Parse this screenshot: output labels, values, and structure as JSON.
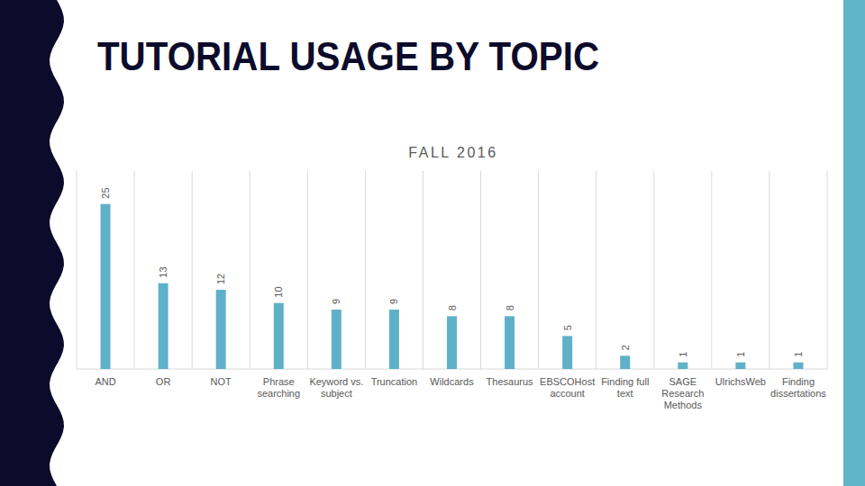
{
  "slide": {
    "title": "TUTORIAL USAGE BY TOPIC"
  },
  "chart_data": {
    "type": "bar",
    "title": "FALL 2016",
    "categories": [
      "AND",
      "OR",
      "NOT",
      "Phrase searching",
      "Keyword vs. subject",
      "Truncation",
      "Wildcards",
      "Thesaurus",
      "EBSCOHost account",
      "Finding full text",
      "SAGE Research Methods",
      "UlrichsWeb",
      "Finding dissertations"
    ],
    "values": [
      25,
      13,
      12,
      10,
      9,
      9,
      8,
      8,
      5,
      2,
      1,
      1,
      1
    ],
    "color": "#5fb1c9",
    "ylim": [
      0,
      30
    ],
    "yticks": [],
    "grid": true,
    "data_labels": true,
    "tick_labels": "x"
  }
}
